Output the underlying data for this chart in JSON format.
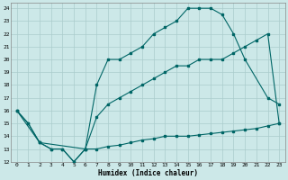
{
  "xlabel": "Humidex (Indice chaleur)",
  "bg_color": "#cce8e8",
  "grid_color": "#aacccc",
  "line_color": "#006666",
  "xlim": [
    -0.5,
    23.5
  ],
  "ylim": [
    12,
    24.4
  ],
  "xtick_vals": [
    0,
    1,
    2,
    3,
    4,
    5,
    6,
    7,
    8,
    9,
    10,
    11,
    12,
    13,
    14,
    15,
    16,
    17,
    18,
    19,
    20,
    21,
    22,
    23
  ],
  "ytick_vals": [
    12,
    13,
    14,
    15,
    16,
    17,
    18,
    19,
    20,
    21,
    22,
    23,
    24
  ],
  "line1_x": [
    0,
    1,
    2,
    3,
    4,
    5,
    6,
    7,
    8,
    9,
    10,
    11,
    12,
    13,
    14,
    15,
    16,
    17,
    18,
    19,
    20,
    21,
    22,
    23
  ],
  "line1_y": [
    16,
    15,
    13.5,
    13,
    13,
    12,
    13,
    13,
    13.2,
    13.3,
    13.5,
    13.7,
    13.8,
    14,
    14,
    14,
    14.1,
    14.2,
    14.3,
    14.4,
    14.5,
    14.6,
    14.8,
    15
  ],
  "line2_x": [
    0,
    1,
    2,
    3,
    4,
    5,
    6,
    7,
    8,
    9,
    10,
    11,
    12,
    13,
    14,
    15,
    16,
    17,
    18,
    19,
    20,
    21,
    22,
    23
  ],
  "line2_y": [
    16,
    15,
    13.5,
    13,
    13,
    12,
    13,
    15.5,
    16.5,
    17,
    17.5,
    18,
    18.5,
    19,
    19.5,
    19.5,
    20,
    20,
    20,
    20.5,
    21,
    21.5,
    22,
    15
  ],
  "line3_x": [
    0,
    2,
    6,
    7,
    8,
    9,
    10,
    11,
    12,
    13,
    14,
    15,
    16,
    17,
    18,
    19,
    20,
    22,
    23
  ],
  "line3_y": [
    16,
    13.5,
    13,
    18,
    20,
    20,
    20.5,
    21,
    22,
    22.5,
    23,
    24,
    24,
    24,
    23.5,
    22,
    20,
    17,
    16.5
  ]
}
